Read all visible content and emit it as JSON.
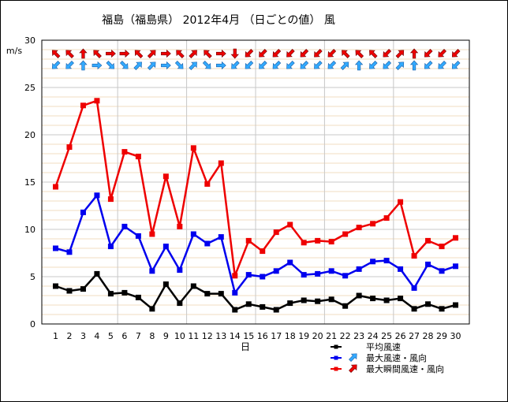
{
  "chart_data": {
    "type": "line",
    "title": "福島（福島県） 2012年4月 （日ごとの値） 風",
    "ylabel": "m/s",
    "xlabel": "日",
    "ylim": [
      0,
      30
    ],
    "yticks": [
      0,
      5,
      10,
      15,
      20,
      25,
      30
    ],
    "grid": true,
    "legend_position": "bottom-right",
    "categories": [
      "1",
      "2",
      "3",
      "4",
      "5",
      "6",
      "7",
      "8",
      "9",
      "10",
      "11",
      "12",
      "13",
      "14",
      "15",
      "16",
      "17",
      "18",
      "19",
      "20",
      "21",
      "22",
      "23",
      "24",
      "25",
      "26",
      "27",
      "28",
      "29",
      "30"
    ],
    "series": [
      {
        "name": "平均風速",
        "color": "#000000",
        "values": [
          4.0,
          3.5,
          3.7,
          5.3,
          3.2,
          3.3,
          2.8,
          1.6,
          4.2,
          2.2,
          4.0,
          3.2,
          3.2,
          1.5,
          2.1,
          1.8,
          1.5,
          2.2,
          2.5,
          2.4,
          2.6,
          1.9,
          3.0,
          2.7,
          2.5,
          2.7,
          1.6,
          2.1,
          1.6,
          2.0
        ]
      },
      {
        "name": "最大風速・風向",
        "color": "#0000ee",
        "arrow_color": "#33aaff",
        "values": [
          8.0,
          7.6,
          11.8,
          13.6,
          8.2,
          10.3,
          9.3,
          5.6,
          8.2,
          5.7,
          9.5,
          8.5,
          9.2,
          3.3,
          5.2,
          5.0,
          5.6,
          6.5,
          5.2,
          5.3,
          5.6,
          5.1,
          5.8,
          6.6,
          6.7,
          5.8,
          3.8,
          6.3,
          5.6,
          6.1
        ],
        "directions_deg": [
          225,
          225,
          0,
          90,
          135,
          135,
          45,
          45,
          90,
          135,
          45,
          135,
          90,
          225,
          225,
          225,
          225,
          225,
          225,
          225,
          225,
          45,
          0,
          225,
          225,
          45,
          0,
          225,
          225,
          225
        ]
      },
      {
        "name": "最大瞬間風速・風向",
        "color": "#ee0000",
        "arrow_color": "#ee0000",
        "values": [
          14.5,
          18.7,
          23.1,
          23.6,
          13.2,
          18.2,
          17.7,
          9.5,
          15.6,
          10.3,
          18.6,
          14.8,
          17.0,
          5.1,
          8.8,
          7.7,
          9.7,
          10.5,
          8.6,
          8.8,
          8.7,
          9.5,
          10.2,
          10.6,
          11.2,
          12.9,
          7.2,
          8.8,
          8.2,
          9.1
        ],
        "directions_deg": [
          315,
          315,
          0,
          315,
          90,
          90,
          315,
          45,
          90,
          315,
          45,
          315,
          90,
          180,
          225,
          225,
          225,
          225,
          225,
          225,
          225,
          315,
          315,
          315,
          225,
          45,
          0,
          225,
          225,
          225
        ]
      }
    ]
  }
}
